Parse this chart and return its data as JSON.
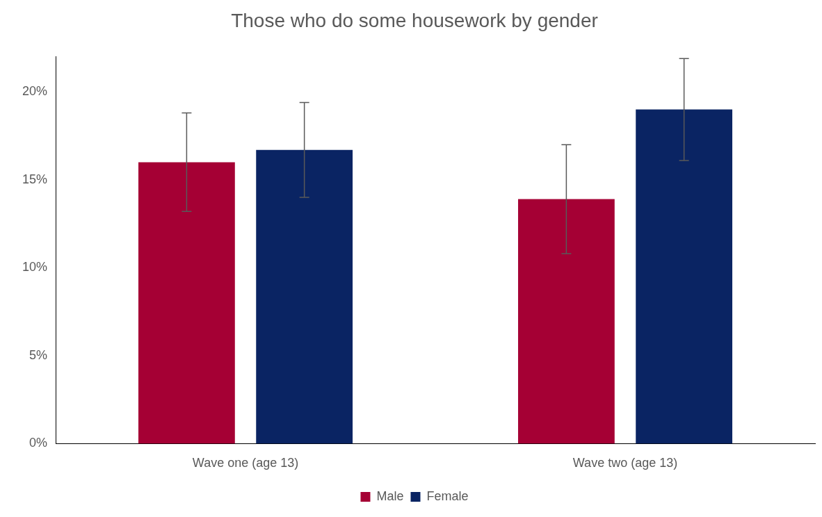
{
  "chart_data": {
    "type": "bar",
    "title": "Those who do some housework by gender",
    "categories": [
      "Wave one (age 13)",
      "Wave two (age 13)"
    ],
    "series": [
      {
        "name": "Male",
        "color": "#a50034",
        "values": [
          16.0,
          13.9
        ],
        "errors": [
          [
            13.2,
            18.8
          ],
          [
            10.8,
            17.0
          ]
        ]
      },
      {
        "name": "Female",
        "color": "#0a2463",
        "values": [
          16.7,
          19.0
        ],
        "errors": [
          [
            14.0,
            19.4
          ],
          [
            16.1,
            21.9
          ]
        ]
      }
    ],
    "ylim": [
      0,
      22
    ],
    "yticks": [
      {
        "value": 0,
        "label": "0%"
      },
      {
        "value": 5,
        "label": "5%"
      },
      {
        "value": 10,
        "label": "10%"
      },
      {
        "value": 15,
        "label": "15%"
      },
      {
        "value": 20,
        "label": "20%"
      }
    ],
    "grid": false,
    "legend": "bottom"
  }
}
